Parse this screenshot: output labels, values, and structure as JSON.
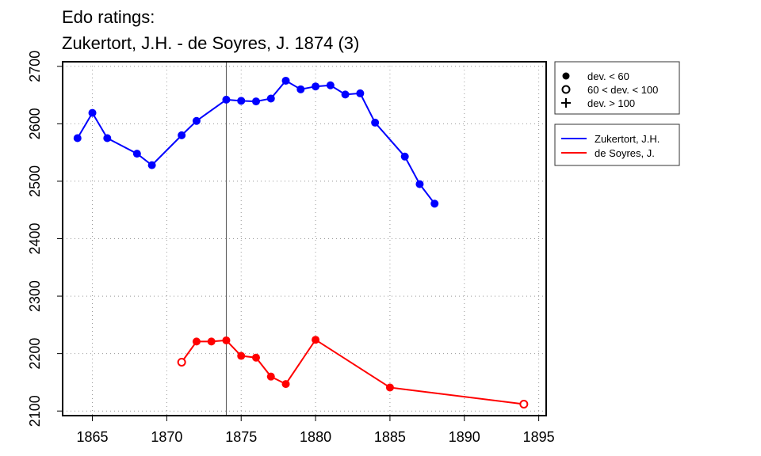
{
  "chart_data": {
    "type": "line",
    "title": "Edo ratings:",
    "subtitle": "Zukertort, J.H. - de Soyres, J. 1874 (3)",
    "xlabel": "",
    "ylabel": "",
    "xlim": [
      1863,
      1895.5
    ],
    "ylim": [
      2092,
      2708
    ],
    "x_ticks": [
      1865,
      1870,
      1875,
      1880,
      1885,
      1890,
      1895
    ],
    "y_ticks": [
      2100,
      2200,
      2300,
      2400,
      2500,
      2600,
      2700
    ],
    "grid": true,
    "marker_year": 1874,
    "series": [
      {
        "name": "Zukertort, J.H.",
        "color": "#0000ff",
        "points": [
          {
            "x": 1864,
            "y": 2575,
            "marker": "filled"
          },
          {
            "x": 1865,
            "y": 2619,
            "marker": "filled"
          },
          {
            "x": 1866,
            "y": 2575,
            "marker": "filled"
          },
          {
            "x": 1868,
            "y": 2548,
            "marker": "filled"
          },
          {
            "x": 1869,
            "y": 2528,
            "marker": "filled"
          },
          {
            "x": 1871,
            "y": 2580,
            "marker": "filled"
          },
          {
            "x": 1872,
            "y": 2605,
            "marker": "filled"
          },
          {
            "x": 1874,
            "y": 2642,
            "marker": "filled"
          },
          {
            "x": 1875,
            "y": 2640,
            "marker": "filled"
          },
          {
            "x": 1876,
            "y": 2639,
            "marker": "filled"
          },
          {
            "x": 1877,
            "y": 2644,
            "marker": "filled"
          },
          {
            "x": 1878,
            "y": 2675,
            "marker": "filled"
          },
          {
            "x": 1879,
            "y": 2660,
            "marker": "filled"
          },
          {
            "x": 1880,
            "y": 2665,
            "marker": "filled"
          },
          {
            "x": 1881,
            "y": 2667,
            "marker": "filled"
          },
          {
            "x": 1882,
            "y": 2651,
            "marker": "filled"
          },
          {
            "x": 1883,
            "y": 2653,
            "marker": "filled"
          },
          {
            "x": 1884,
            "y": 2602,
            "marker": "filled"
          },
          {
            "x": 1886,
            "y": 2543,
            "marker": "filled"
          },
          {
            "x": 1887,
            "y": 2495,
            "marker": "filled"
          },
          {
            "x": 1888,
            "y": 2461,
            "marker": "filled"
          }
        ]
      },
      {
        "name": "de Soyres, J.",
        "color": "#ff0000",
        "points": [
          {
            "x": 1871,
            "y": 2185,
            "marker": "open"
          },
          {
            "x": 1872,
            "y": 2221,
            "marker": "filled"
          },
          {
            "x": 1873,
            "y": 2221,
            "marker": "filled"
          },
          {
            "x": 1874,
            "y": 2223,
            "marker": "filled"
          },
          {
            "x": 1875,
            "y": 2196,
            "marker": "filled"
          },
          {
            "x": 1876,
            "y": 2193,
            "marker": "filled"
          },
          {
            "x": 1877,
            "y": 2160,
            "marker": "filled"
          },
          {
            "x": 1878,
            "y": 2147,
            "marker": "filled"
          },
          {
            "x": 1880,
            "y": 2224,
            "marker": "filled"
          },
          {
            "x": 1885,
            "y": 2141,
            "marker": "filled"
          },
          {
            "x": 1894,
            "y": 2112,
            "marker": "open"
          }
        ]
      }
    ],
    "marker_legend": [
      {
        "symbol": "filled",
        "label": "dev. < 60"
      },
      {
        "symbol": "open",
        "label": "60 < dev. < 100"
      },
      {
        "symbol": "plus",
        "label": "dev. > 100"
      }
    ],
    "legend_position": "right"
  }
}
